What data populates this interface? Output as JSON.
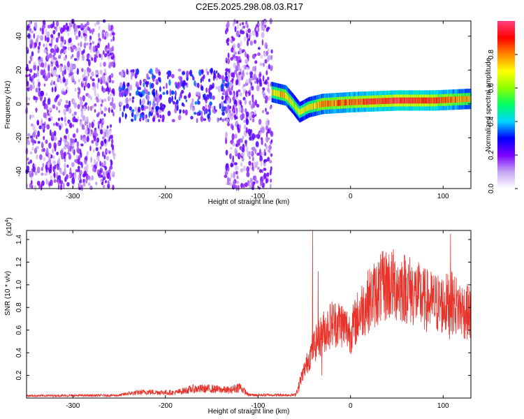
{
  "title": "C2E5.2025.298.08.03.R17",
  "chart_data": [
    {
      "type": "heatmap",
      "xlabel": "Height of straight line (km)",
      "ylabel": "Frequency (Hz)",
      "xlim": [
        -350,
        130
      ],
      "ylim": [
        -50,
        49
      ],
      "xticks": [
        -300,
        -200,
        -100,
        0,
        100
      ],
      "yticks": [
        -40,
        -20,
        0,
        20,
        40
      ],
      "colorbar": {
        "label": "Normalized spectral amplitude",
        "range": [
          0.0,
          1.0
        ],
        "ticks": [
          0.0,
          0.2,
          0.4,
          0.6,
          0.8
        ],
        "tick_labels": [
          "0.0",
          "0.2",
          "0.4",
          "0.6",
          "0.8"
        ],
        "colors": [
          "#ffffff",
          "#c7a6f2",
          "#7a00ff",
          "#0000ff",
          "#00d5ff",
          "#00ff66",
          "#8cff00",
          "#ffff00",
          "#ff8800",
          "#ff0000",
          "#ff3f7f"
        ]
      },
      "ridge": {
        "description_points": [
          {
            "x": -85,
            "f": 7,
            "amp": 0.75
          },
          {
            "x": -70,
            "f": 5,
            "amp": 0.8
          },
          {
            "x": -62,
            "f": 0,
            "amp": 0.7
          },
          {
            "x": -55,
            "f": -5,
            "amp": 0.7
          },
          {
            "x": -45,
            "f": -2,
            "amp": 0.75
          },
          {
            "x": -30,
            "f": 0,
            "amp": 0.85
          },
          {
            "x": 0,
            "f": 1,
            "amp": 0.9
          },
          {
            "x": 50,
            "f": 2,
            "amp": 1.0
          },
          {
            "x": 90,
            "f": 2,
            "amp": 0.95
          },
          {
            "x": 130,
            "f": 3,
            "amp": 0.8
          }
        ]
      },
      "noise_regions": [
        {
          "x_start": -350,
          "x_end": -255,
          "f_min": -50,
          "f_max": 49,
          "amp": 0.2
        },
        {
          "x_start": -250,
          "x_end": -130,
          "f_min": -10,
          "f_max": 20,
          "amp": 0.3
        },
        {
          "x_start": -135,
          "x_end": -85,
          "f_min": -50,
          "f_max": 49,
          "amp": 0.2
        }
      ]
    },
    {
      "type": "line",
      "xlabel": "Height of straight line (km)",
      "ylabel": "SNR (10 * v/v)",
      "exponent_label": "(x10",
      "exponent_power": "4",
      "exponent_close": ")",
      "xlim": [
        -350,
        130
      ],
      "ylim": [
        0,
        1.48
      ],
      "xticks": [
        -300,
        -200,
        -100,
        0,
        100
      ],
      "yticks": [
        0.2,
        0.4,
        0.6,
        0.8,
        1.0,
        1.2,
        1.4
      ],
      "ytick_labels": [
        "0.2",
        "0.4",
        "0.6",
        "0.8",
        "1.0",
        "1.2",
        "1.4"
      ],
      "color": "#e8332b",
      "envelope": [
        {
          "x": -350,
          "y": 0.03
        },
        {
          "x": -250,
          "y": 0.035
        },
        {
          "x": -240,
          "y": 0.06
        },
        {
          "x": -220,
          "y": 0.08
        },
        {
          "x": -190,
          "y": 0.07
        },
        {
          "x": -170,
          "y": 0.12
        },
        {
          "x": -150,
          "y": 0.12
        },
        {
          "x": -130,
          "y": 0.1
        },
        {
          "x": -120,
          "y": 0.15
        },
        {
          "x": -110,
          "y": 0.04
        },
        {
          "x": -60,
          "y": 0.04
        },
        {
          "x": -50,
          "y": 0.3
        },
        {
          "x": -40,
          "y": 0.55
        },
        {
          "x": -30,
          "y": 0.7
        },
        {
          "x": -20,
          "y": 0.8
        },
        {
          "x": -10,
          "y": 0.8
        },
        {
          "x": 0,
          "y": 0.7
        },
        {
          "x": 10,
          "y": 0.92
        },
        {
          "x": 20,
          "y": 1.05
        },
        {
          "x": 30,
          "y": 1.15
        },
        {
          "x": 40,
          "y": 1.22
        },
        {
          "x": 50,
          "y": 1.2
        },
        {
          "x": 60,
          "y": 1.18
        },
        {
          "x": 70,
          "y": 1.12
        },
        {
          "x": 80,
          "y": 1.05
        },
        {
          "x": 90,
          "y": 1.02
        },
        {
          "x": 100,
          "y": 1.0
        },
        {
          "x": 110,
          "y": 1.02
        },
        {
          "x": 120,
          "y": 0.95
        },
        {
          "x": 130,
          "y": 0.9
        }
      ],
      "spikes": [
        {
          "x": -41,
          "y": 1.48
        },
        {
          "x": -35,
          "y": 1.12
        },
        {
          "x": 108,
          "y": 1.45
        },
        {
          "x": 107,
          "y": 0.52
        },
        {
          "x": -31,
          "y": 0.2
        }
      ]
    }
  ]
}
